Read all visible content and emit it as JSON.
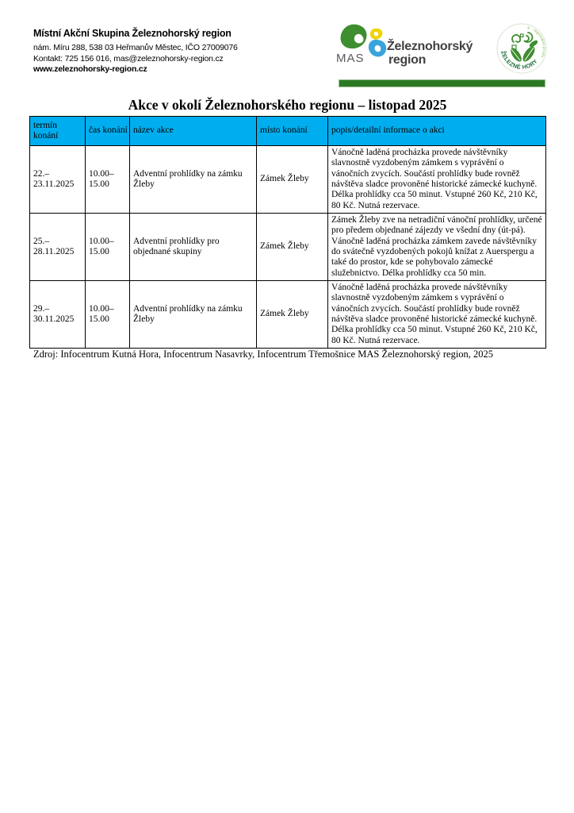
{
  "org": {
    "name": "Místní Akční Skupina Železnohorský region",
    "address": "nám. Míru 288, 538 03 Heřmanův Městec, IČO 27009076",
    "contact": "Kontakt: 725 156 016, mas@zeleznohorsky-region.cz",
    "web": "www.zeleznohorsky-region.cz"
  },
  "mas_logo": {
    "abbr": "MAS",
    "title_line1": "Železnohorský",
    "title_line2": "region"
  },
  "round_logo": {
    "arc_main": "ŽELEZNÉ HORY",
    "arc_side": "regionální produkt",
    "reg_mark": "®"
  },
  "title": "Akce v okolí Železnohorského regionu – listopad 2025",
  "table": {
    "headers": [
      "termín konání",
      "čas konání",
      "název akce",
      "místo konání",
      "popis/detailní informace o akci"
    ],
    "rows": [
      {
        "date_lines": [
          "22.–",
          "23.11.2025"
        ],
        "time_lines": [
          "10.00–",
          "15.00"
        ],
        "name": "Adventní prohlídky na zámku Žleby",
        "place": "Zámek Žleby",
        "description": "Vánočně laděná procházka provede návštěvníky slavnostně vyzdobeným zámkem s vyprávění o vánočních zvycích. Součástí prohlídky bude rovněž návštěva sladce provoněné historické zámecké kuchyně. Délka prohlídky cca 50 minut. Vstupné 260 Kč, 210 Kč, 80 Kč. Nutná rezervace."
      },
      {
        "date_lines": [
          "25.–",
          "28.11.2025"
        ],
        "time_lines": [
          "10.00–",
          "15.00"
        ],
        "name": "Adventní prohlídky pro objednané skupiny",
        "place": "Zámek Žleby",
        "description": "Zámek Žleby zve na netradiční vánoční prohlídky, určené pro předem objednané zájezdy ve všední dny (út-pá). Vánočně laděná procházka zámkem zavede návštěvníky do svátečně vyzdobených pokojů knížat z Auerspergu a také do prostor, kde se pohybovalo zámecké služebnictvo. Délka prohlídky cca 50 min."
      },
      {
        "date_lines": [
          "29.–",
          "30.11.2025"
        ],
        "time_lines": [
          "10.00–",
          "15.00"
        ],
        "name": "Adventní prohlídky na zámku Žleby",
        "place": "Zámek Žleby",
        "description": "Vánočně laděná procházka provede návštěvníky slavnostně vyzdobeným zámkem s vyprávění o vánočních zvycích. Součástí prohlídky bude rovněž návštěva sladce provoněné historické zámecké kuchyně. Délka prohlídky cca 50 minut. Vstupné 260 Kč, 210 Kč, 80 Kč. Nutná rezervace."
      }
    ]
  },
  "source": "Zdroj: Infocentrum Kutná Hora, Infocentrum Nasavrky, Infocentrum Třemošnice MAS Železnohorský region, 2025",
  "colors": {
    "table_header_bg": "#00aeef",
    "divider_green": "#2b7a23",
    "logo_green": "#3e8d2f",
    "logo_yellow": "#eed400",
    "logo_blue": "#3aa3dc",
    "arc_text_green": "#1d6e38",
    "arc_side_green": "#76b043"
  }
}
